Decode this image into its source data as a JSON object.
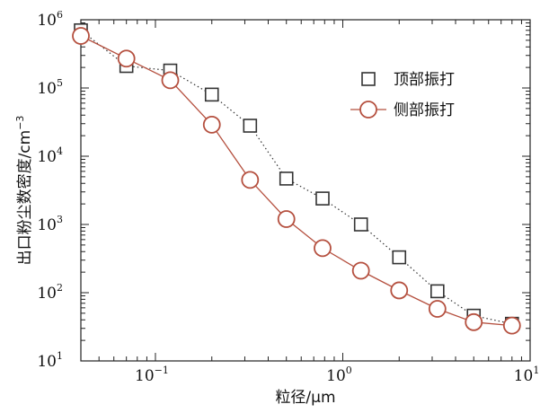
{
  "chart_data": {
    "type": "scatter",
    "xlabel": "粒径/μm",
    "ylabel": "出口粉尘数密度/cm",
    "ylabel_exp": "−3",
    "xscale": "log",
    "yscale": "log",
    "xlim": [
      0.04,
      10
    ],
    "ylim": [
      10,
      1000000
    ],
    "x_ticks": [
      {
        "value": 0.1,
        "base": "10",
        "exp": "−1"
      },
      {
        "value": 1,
        "base": "10",
        "exp": "0"
      },
      {
        "value": 10,
        "base": "10",
        "exp": "1"
      }
    ],
    "y_ticks": [
      {
        "value": 10,
        "base": "10",
        "exp": "1"
      },
      {
        "value": 100,
        "base": "10",
        "exp": "2"
      },
      {
        "value": 1000,
        "base": "10",
        "exp": "3"
      },
      {
        "value": 10000,
        "base": "10",
        "exp": "4"
      },
      {
        "value": 100000,
        "base": "10",
        "exp": "5"
      },
      {
        "value": 1000000,
        "base": "10",
        "exp": "6"
      }
    ],
    "legend_position": "top-right",
    "grid": false,
    "series": [
      {
        "name": "顶部振打",
        "marker": "square",
        "line": "dotted",
        "color": "#333333",
        "x": [
          0.04,
          0.07,
          0.12,
          0.2,
          0.32,
          0.5,
          0.78,
          1.25,
          2.0,
          3.2,
          5.0,
          8.0
        ],
        "y": [
          700000,
          210000,
          180000,
          80000,
          28000,
          4700,
          2400,
          1000,
          330,
          105,
          46,
          35
        ]
      },
      {
        "name": "侧部振打",
        "marker": "circle",
        "line": "solid",
        "color": "#b5503f",
        "x": [
          0.04,
          0.07,
          0.12,
          0.2,
          0.32,
          0.5,
          0.78,
          1.25,
          2.0,
          3.2,
          5.0,
          8.0
        ],
        "y": [
          580000,
          270000,
          130000,
          29000,
          4500,
          1200,
          450,
          210,
          108,
          58,
          37,
          33
        ]
      }
    ]
  }
}
